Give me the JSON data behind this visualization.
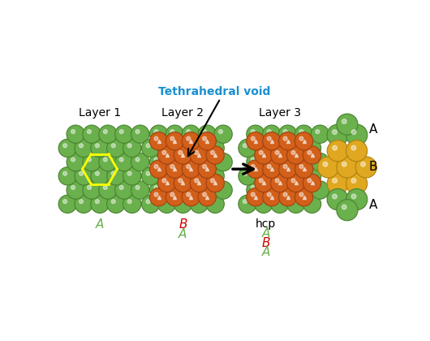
{
  "bg_color": "#ffffff",
  "green_color": "#6ab04c",
  "green_dark": "#4a8030",
  "orange_color": "#d2601a",
  "orange_dark": "#a04010",
  "gold_color": "#e0a820",
  "gold_dark": "#b08010",
  "title": "Tethrahedral void",
  "title_color": "#1a90d0",
  "label_A_color": "#6ab04c",
  "label_B_color": "#cc0000",
  "layer1_label": "Layer 1",
  "layer2_label": "Layer 2",
  "layer3_label": "Layer 3",
  "fig_width": 5.3,
  "fig_height": 4.2,
  "dpi": 100
}
